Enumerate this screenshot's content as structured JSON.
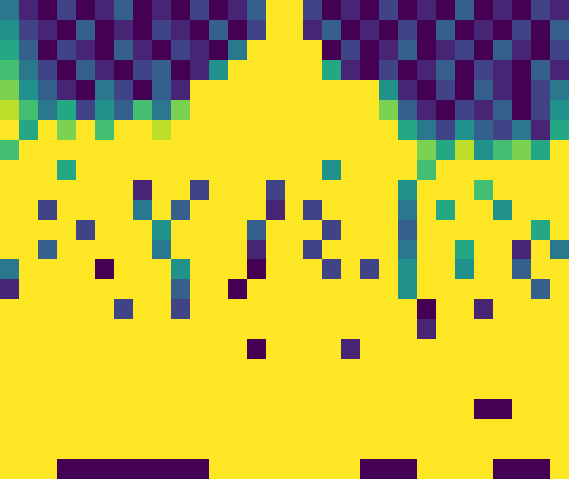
{
  "chart_data": {
    "type": "heatmap",
    "color": "Viridis",
    "zlim": [
      0,
      1
    ],
    "xlim": [
      -0.5,
      29.5
    ],
    "ylim": [
      23.5,
      -0.5
    ],
    "tick_labels": false,
    "grid": false,
    "cells": [
      [
        0.4,
        0.1,
        0.0,
        0.2,
        0.0,
        0.1,
        0.3,
        0.0,
        0.1,
        0.0,
        0.2,
        0.0,
        0.1,
        0.3,
        1,
        1,
        0.2,
        0.0,
        0.1,
        0.0,
        0.2,
        0.0,
        0.1,
        0.0,
        0.3,
        0.0,
        0.1,
        0.0,
        0.2,
        0.1
      ],
      [
        0.5,
        0.2,
        0.1,
        0.0,
        0.3,
        0.0,
        0.1,
        0.0,
        0.2,
        0.1,
        0.0,
        0.3,
        0.0,
        0.2,
        1,
        1,
        0.1,
        0.3,
        0.0,
        0.1,
        0.0,
        0.2,
        0.0,
        0.3,
        0.0,
        0.1,
        0.0,
        0.2,
        0.0,
        0.3
      ],
      [
        0.6,
        0.3,
        0.0,
        0.2,
        0.1,
        0.0,
        0.3,
        0.1,
        0.0,
        0.2,
        0.1,
        0.0,
        0.4,
        1,
        1,
        1,
        1,
        0.0,
        0.2,
        0.0,
        0.1,
        0.3,
        0.0,
        0.1,
        0.2,
        0.0,
        0.3,
        0.1,
        0.0,
        0.2
      ],
      [
        0.7,
        0.4,
        0.2,
        0.0,
        0.3,
        0.1,
        0.0,
        0.2,
        0.3,
        0.0,
        0.1,
        0.5,
        1,
        1,
        1,
        1,
        1,
        0.6,
        0.1,
        0.0,
        0.2,
        0.0,
        0.1,
        0.3,
        0.0,
        0.2,
        0.1,
        0.0,
        0.3,
        0.1
      ],
      [
        0.8,
        0.5,
        0.3,
        0.1,
        0.0,
        0.4,
        0.2,
        0.0,
        0.3,
        0.1,
        1,
        1,
        1,
        1,
        1,
        1,
        1,
        1,
        1,
        1,
        0.5,
        0.1,
        0.0,
        0.2,
        0.0,
        0.3,
        0.1,
        0.0,
        0.2,
        0.4
      ],
      [
        0.9,
        0.7,
        0.4,
        0.6,
        0.2,
        0.5,
        0.3,
        0.7,
        0.4,
        0.8,
        1,
        1,
        1,
        1,
        1,
        1,
        1,
        1,
        1,
        1,
        0.8,
        0.3,
        0.1,
        0.0,
        0.2,
        0.1,
        0.3,
        0.0,
        0.2,
        0.5
      ],
      [
        1,
        0.6,
        1,
        0.8,
        1,
        0.7,
        1,
        1,
        0.9,
        1,
        1,
        1,
        1,
        1,
        1,
        1,
        1,
        1,
        1,
        1,
        1,
        0.6,
        0.4,
        0.2,
        0.5,
        0.3,
        0.2,
        0.4,
        0.1,
        0.6
      ],
      [
        0.7,
        1,
        1,
        1,
        1,
        1,
        1,
        1,
        1,
        1,
        1,
        1,
        1,
        1,
        1,
        1,
        1,
        1,
        1,
        1,
        1,
        1,
        0.8,
        0.6,
        0.9,
        0.5,
        0.7,
        0.8,
        0.6,
        1
      ],
      [
        1,
        1,
        1,
        0.6,
        1,
        1,
        1,
        1,
        1,
        1,
        1,
        1,
        1,
        1,
        1,
        1,
        1,
        0.5,
        1,
        1,
        1,
        1,
        0.7,
        1,
        1,
        1,
        1,
        1,
        1,
        1
      ],
      [
        1,
        1,
        1,
        1,
        1,
        1,
        1,
        0.1,
        1,
        1,
        0.2,
        1,
        1,
        1,
        0.2,
        1,
        1,
        1,
        1,
        1,
        1,
        0.5,
        1,
        1,
        1,
        0.7,
        1,
        1,
        1,
        1
      ],
      [
        1,
        1,
        0.2,
        1,
        1,
        1,
        1,
        0.4,
        1,
        0.3,
        1,
        1,
        1,
        1,
        0.1,
        1,
        0.2,
        1,
        1,
        1,
        1,
        0.4,
        1,
        0.6,
        1,
        1,
        0.5,
        1,
        1,
        1
      ],
      [
        1,
        1,
        1,
        1,
        0.2,
        1,
        1,
        1,
        0.5,
        1,
        1,
        1,
        1,
        0.3,
        1,
        1,
        1,
        0.2,
        1,
        1,
        1,
        0.3,
        1,
        1,
        1,
        1,
        1,
        1,
        0.6,
        1
      ],
      [
        1,
        1,
        0.3,
        1,
        1,
        1,
        1,
        1,
        0.4,
        1,
        1,
        1,
        1,
        0.1,
        1,
        1,
        0.2,
        1,
        1,
        1,
        1,
        0.4,
        1,
        1,
        0.6,
        1,
        1,
        0.1,
        1,
        0.4
      ],
      [
        0.4,
        1,
        1,
        1,
        1,
        0.0,
        1,
        1,
        1,
        0.5,
        1,
        1,
        1,
        0.0,
        1,
        1,
        1,
        0.2,
        1,
        0.2,
        1,
        0.5,
        1,
        1,
        0.5,
        1,
        1,
        0.3,
        1,
        1
      ],
      [
        0.1,
        1,
        1,
        1,
        1,
        1,
        1,
        1,
        1,
        0.3,
        1,
        1,
        0.0,
        1,
        1,
        1,
        1,
        1,
        1,
        1,
        1,
        0.5,
        1,
        1,
        1,
        1,
        1,
        1,
        0.3,
        1
      ],
      [
        1,
        1,
        1,
        1,
        1,
        1,
        0.2,
        1,
        1,
        0.2,
        1,
        1,
        1,
        1,
        1,
        1,
        1,
        1,
        1,
        1,
        1,
        1,
        0.0,
        1,
        1,
        0.1,
        1,
        1,
        1,
        1
      ],
      [
        1,
        1,
        1,
        1,
        1,
        1,
        1,
        1,
        1,
        1,
        1,
        1,
        1,
        1,
        1,
        1,
        1,
        1,
        1,
        1,
        1,
        1,
        0.1,
        1,
        1,
        1,
        1,
        1,
        1,
        1
      ],
      [
        1,
        1,
        1,
        1,
        1,
        1,
        1,
        1,
        1,
        1,
        1,
        1,
        1,
        0.0,
        1,
        1,
        1,
        1,
        0.1,
        1,
        1,
        1,
        1,
        1,
        1,
        1,
        1,
        1,
        1,
        1
      ],
      [
        1,
        1,
        1,
        1,
        1,
        1,
        1,
        1,
        1,
        1,
        1,
        1,
        1,
        1,
        1,
        1,
        1,
        1,
        1,
        1,
        1,
        1,
        1,
        1,
        1,
        1,
        1,
        1,
        1,
        1
      ],
      [
        1,
        1,
        1,
        1,
        1,
        1,
        1,
        1,
        1,
        1,
        1,
        1,
        1,
        1,
        1,
        1,
        1,
        1,
        1,
        1,
        1,
        1,
        1,
        1,
        1,
        1,
        1,
        1,
        1,
        1
      ],
      [
        1,
        1,
        1,
        1,
        1,
        1,
        1,
        1,
        1,
        1,
        1,
        1,
        1,
        1,
        1,
        1,
        1,
        1,
        1,
        1,
        1,
        1,
        1,
        1,
        1,
        0.0,
        0.0,
        1,
        1,
        1
      ],
      [
        1,
        1,
        1,
        1,
        1,
        1,
        1,
        1,
        1,
        1,
        1,
        1,
        1,
        1,
        1,
        1,
        1,
        1,
        1,
        1,
        1,
        1,
        1,
        1,
        1,
        1,
        1,
        1,
        1,
        1
      ],
      [
        1,
        1,
        1,
        1,
        1,
        1,
        1,
        1,
        1,
        1,
        1,
        1,
        1,
        1,
        1,
        1,
        1,
        1,
        1,
        1,
        1,
        1,
        1,
        1,
        1,
        1,
        1,
        1,
        1,
        1
      ],
      [
        1,
        1,
        1,
        0.0,
        0.0,
        0.0,
        0.0,
        0.0,
        0.0,
        0.0,
        0.0,
        1,
        1,
        1,
        1,
        1,
        1,
        1,
        1,
        0.0,
        0.0,
        0.0,
        1,
        1,
        1,
        1,
        0.0,
        0.0,
        0.0,
        1
      ]
    ]
  }
}
